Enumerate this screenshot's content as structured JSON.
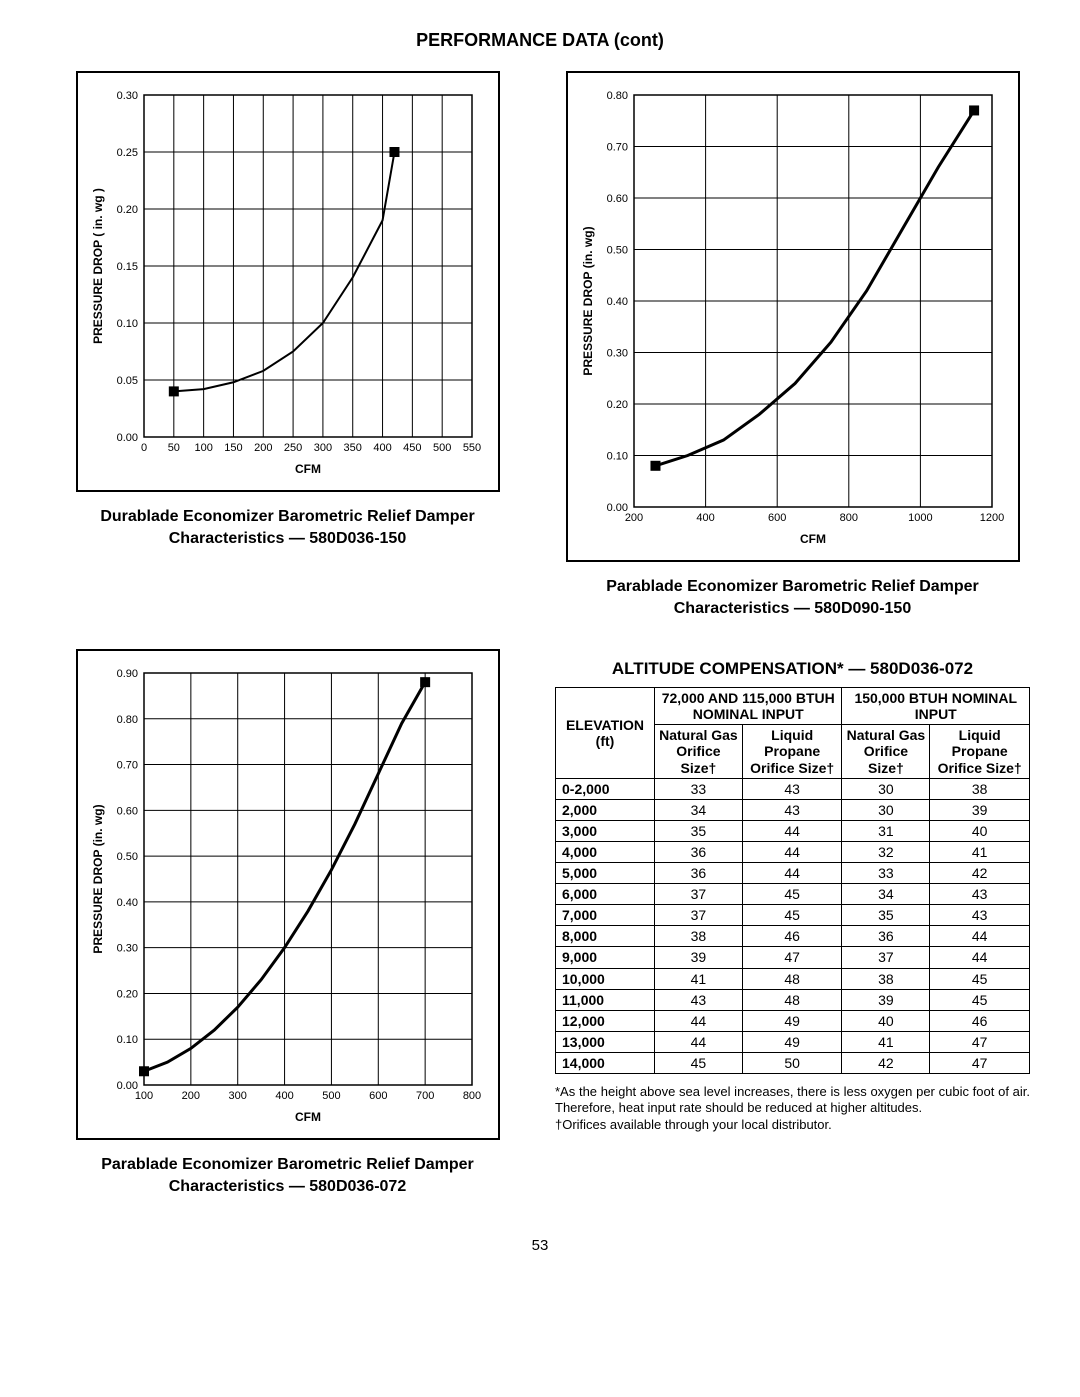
{
  "page_title": "PERFORMANCE DATA (cont)",
  "page_number": "53",
  "chart1": {
    "type": "line",
    "caption": "Durablade Economizer Barometric Relief Damper Characteristics — 580D036-150",
    "xlabel": "CFM",
    "ylabel": "PRESSURE DROP ( in. wg )",
    "xlim": [
      0,
      550
    ],
    "xtick_step": 50,
    "ylim": [
      0,
      0.3
    ],
    "ytick_step": 0.05,
    "ytick_decimals": 2,
    "line_color": "#000000",
    "line_width": 2,
    "grid_color": "#000000",
    "background_color": "#ffffff",
    "points": [
      {
        "x": 50,
        "y": 0.04,
        "marker": true
      },
      {
        "x": 100,
        "y": 0.042
      },
      {
        "x": 150,
        "y": 0.048
      },
      {
        "x": 200,
        "y": 0.058
      },
      {
        "x": 250,
        "y": 0.075
      },
      {
        "x": 300,
        "y": 0.1
      },
      {
        "x": 350,
        "y": 0.14
      },
      {
        "x": 400,
        "y": 0.19
      },
      {
        "x": 420,
        "y": 0.25,
        "marker": true
      }
    ]
  },
  "chart2": {
    "type": "line",
    "caption": "Parablade Economizer Barometric Relief Damper Characteristics — 580D090-150",
    "xlabel": "CFM",
    "ylabel": "PRESSURE DROP (in. wg)",
    "xlim": [
      200,
      1200
    ],
    "xtick_step": 200,
    "ylim": [
      0,
      0.8
    ],
    "ytick_step": 0.1,
    "ytick_decimals": 2,
    "line_color": "#000000",
    "line_width": 3,
    "grid_color": "#000000",
    "background_color": "#ffffff",
    "points": [
      {
        "x": 260,
        "y": 0.08,
        "marker": true
      },
      {
        "x": 350,
        "y": 0.1
      },
      {
        "x": 450,
        "y": 0.13
      },
      {
        "x": 550,
        "y": 0.18
      },
      {
        "x": 650,
        "y": 0.24
      },
      {
        "x": 750,
        "y": 0.32
      },
      {
        "x": 850,
        "y": 0.42
      },
      {
        "x": 950,
        "y": 0.54
      },
      {
        "x": 1050,
        "y": 0.66
      },
      {
        "x": 1150,
        "y": 0.77,
        "marker": true
      }
    ]
  },
  "chart3": {
    "type": "line",
    "caption": "Parablade Economizer Barometric Relief Damper Characteristics — 580D036-072",
    "xlabel": "CFM",
    "ylabel": "PRESSURE DROP (in. wg)",
    "xlim": [
      100,
      800
    ],
    "xtick_step": 100,
    "ylim": [
      0,
      0.9
    ],
    "ytick_step": 0.1,
    "ytick_decimals": 2,
    "line_color": "#000000",
    "line_width": 3,
    "grid_color": "#000000",
    "background_color": "#ffffff",
    "points": [
      {
        "x": 100,
        "y": 0.03,
        "marker": true
      },
      {
        "x": 150,
        "y": 0.05
      },
      {
        "x": 200,
        "y": 0.08
      },
      {
        "x": 250,
        "y": 0.12
      },
      {
        "x": 300,
        "y": 0.17
      },
      {
        "x": 350,
        "y": 0.23
      },
      {
        "x": 400,
        "y": 0.3
      },
      {
        "x": 450,
        "y": 0.38
      },
      {
        "x": 500,
        "y": 0.47
      },
      {
        "x": 550,
        "y": 0.57
      },
      {
        "x": 600,
        "y": 0.68
      },
      {
        "x": 650,
        "y": 0.79
      },
      {
        "x": 700,
        "y": 0.88,
        "marker": true
      }
    ]
  },
  "altitude_table": {
    "title": "ALTITUDE COMPENSATION* — 580D036-072",
    "header_group_left": "72,000 AND 115,000 BTUH NOMINAL INPUT",
    "header_group_right": "150,000 BTUH NOMINAL INPUT",
    "elev_header": "ELEVATION (ft)",
    "col_ng": "Natural Gas Orifice Size†",
    "col_lp": "Liquid Propane Orifice Size†",
    "rows": [
      {
        "elev": "0-2,000",
        "a": 33,
        "b": 43,
        "c": 30,
        "d": 38
      },
      {
        "elev": "2,000",
        "a": 34,
        "b": 43,
        "c": 30,
        "d": 39
      },
      {
        "elev": "3,000",
        "a": 35,
        "b": 44,
        "c": 31,
        "d": 40
      },
      {
        "elev": "4,000",
        "a": 36,
        "b": 44,
        "c": 32,
        "d": 41
      },
      {
        "elev": "5,000",
        "a": 36,
        "b": 44,
        "c": 33,
        "d": 42
      },
      {
        "elev": "6,000",
        "a": 37,
        "b": 45,
        "c": 34,
        "d": 43
      },
      {
        "elev": "7,000",
        "a": 37,
        "b": 45,
        "c": 35,
        "d": 43
      },
      {
        "elev": "8,000",
        "a": 38,
        "b": 46,
        "c": 36,
        "d": 44
      },
      {
        "elev": "9,000",
        "a": 39,
        "b": 47,
        "c": 37,
        "d": 44
      },
      {
        "elev": "10,000",
        "a": 41,
        "b": 48,
        "c": 38,
        "d": 45
      },
      {
        "elev": "11,000",
        "a": 43,
        "b": 48,
        "c": 39,
        "d": 45
      },
      {
        "elev": "12,000",
        "a": 44,
        "b": 49,
        "c": 40,
        "d": 46
      },
      {
        "elev": "13,000",
        "a": 44,
        "b": 49,
        "c": 41,
        "d": 47
      },
      {
        "elev": "14,000",
        "a": 45,
        "b": 50,
        "c": 42,
        "d": 47
      }
    ],
    "footnote_star": "*As the height above sea level increases, there is less oxygen per cubic foot of air. Therefore, heat input rate should be reduced at higher altitudes.",
    "footnote_dagger": "†Orifices available through your local distributor."
  }
}
